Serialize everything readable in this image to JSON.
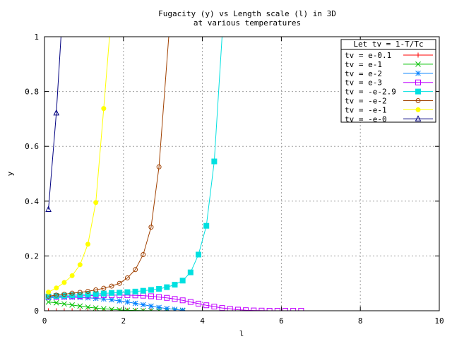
{
  "chart_data": {
    "type": "line",
    "title": "Fugacity (y) vs Length scale (l) in 3D",
    "subtitle": "at various temperatures",
    "xlabel": "l",
    "ylabel": "y",
    "xlim": [
      0,
      10
    ],
    "ylim": [
      0,
      1
    ],
    "x_ticks": [
      0,
      2,
      4,
      6,
      8,
      10
    ],
    "y_ticks": [
      0,
      0.2,
      0.4,
      0.6,
      0.8,
      1
    ],
    "x_tick_labels": [
      "0",
      "2",
      "4",
      "6",
      "8",
      "10"
    ],
    "y_tick_labels": [
      "0",
      "0.2",
      "0.4",
      "0.6",
      "0.8",
      "1"
    ],
    "grid": true,
    "legend": {
      "title": "Let tv = 1-T/Tc",
      "placement": "top-right"
    },
    "series": [
      {
        "name": "tv = e-0.1",
        "color": "#ff0000",
        "marker": "plus",
        "x": [
          0.1,
          0.3,
          0.5,
          0.7,
          0.9,
          1.1,
          1.3,
          1.5,
          1.7,
          1.9,
          2.1,
          2.3,
          2.5,
          2.7,
          2.9,
          3.1,
          3.3,
          3.5
        ],
        "y": [
          0,
          0,
          0,
          0,
          0,
          0,
          0,
          0,
          0,
          0,
          0,
          0,
          0,
          0,
          0,
          0,
          0,
          0
        ]
      },
      {
        "name": "tv = e-1",
        "color": "#00c000",
        "marker": "cross",
        "x": [
          0.1,
          0.3,
          0.5,
          0.7,
          0.9,
          1.1,
          1.3,
          1.5,
          1.7,
          1.9,
          2.1,
          2.3,
          2.5,
          2.7,
          2.9,
          3.1,
          3.3,
          3.5
        ],
        "y": [
          0.032,
          0.029,
          0.025,
          0.021,
          0.017,
          0.013,
          0.01,
          0.007,
          0.005,
          0.003,
          0.002,
          0.001,
          0.0005,
          0.0003,
          0.0001,
          0,
          0,
          0
        ]
      },
      {
        "name": "tv = e-2",
        "color": "#0080ff",
        "marker": "star",
        "x": [
          0.1,
          0.3,
          0.5,
          0.7,
          0.9,
          1.1,
          1.3,
          1.5,
          1.7,
          1.9,
          2.1,
          2.3,
          2.5,
          2.7,
          2.9,
          3.1,
          3.3,
          3.5
        ],
        "y": [
          0.048,
          0.049,
          0.049,
          0.049,
          0.048,
          0.047,
          0.045,
          0.043,
          0.04,
          0.036,
          0.032,
          0.027,
          0.022,
          0.017,
          0.012,
          0.008,
          0.005,
          0.002
        ]
      },
      {
        "name": "tv = e-3",
        "color": "#c000ff",
        "marker": "box",
        "x": [
          0.1,
          0.3,
          0.5,
          0.7,
          0.9,
          1.1,
          1.3,
          1.5,
          1.7,
          1.9,
          2.1,
          2.3,
          2.5,
          2.7,
          2.9,
          3.1,
          3.3,
          3.5,
          3.7,
          3.9,
          4.1,
          4.3,
          4.5,
          4.7,
          4.9,
          5.1,
          5.3,
          5.5,
          5.7,
          5.9,
          6.1,
          6.3,
          6.5
        ],
        "y": [
          0.05,
          0.051,
          0.052,
          0.053,
          0.054,
          0.055,
          0.056,
          0.057,
          0.057,
          0.057,
          0.057,
          0.056,
          0.055,
          0.053,
          0.05,
          0.047,
          0.043,
          0.038,
          0.032,
          0.026,
          0.02,
          0.015,
          0.01,
          0.007,
          0.004,
          0.002,
          0.001,
          0.0005,
          0,
          0,
          0,
          0,
          0
        ]
      },
      {
        "name": "tv = -e-2.9",
        "color": "#00e0e0",
        "marker": "filled-box",
        "x": [
          0.1,
          0.3,
          0.5,
          0.7,
          0.9,
          1.1,
          1.3,
          1.5,
          1.7,
          1.9,
          2.1,
          2.3,
          2.5,
          2.7,
          2.9,
          3.1,
          3.3,
          3.5,
          3.7,
          3.9,
          4.1,
          4.3
        ],
        "y": [
          0.052,
          0.054,
          0.055,
          0.057,
          0.058,
          0.06,
          0.061,
          0.063,
          0.065,
          0.066,
          0.068,
          0.07,
          0.073,
          0.076,
          0.08,
          0.086,
          0.095,
          0.11,
          0.14,
          0.205,
          0.31,
          0.545
        ]
      },
      {
        "name": "tv = -e-2",
        "color": "#a04000",
        "marker": "circle",
        "x": [
          0.1,
          0.3,
          0.5,
          0.7,
          0.9,
          1.1,
          1.3,
          1.5,
          1.7,
          1.9,
          2.1,
          2.3,
          2.5,
          2.7,
          2.9
        ],
        "y": [
          0.053,
          0.057,
          0.06,
          0.064,
          0.067,
          0.071,
          0.076,
          0.082,
          0.09,
          0.1,
          0.12,
          0.15,
          0.205,
          0.305,
          0.525
        ]
      },
      {
        "name": "tv = -e-1",
        "color": "#ffff00",
        "marker": "filled-circle",
        "x": [
          0.1,
          0.3,
          0.5,
          0.7,
          0.9,
          1.1,
          1.3,
          1.5
        ],
        "y": [
          0.068,
          0.083,
          0.103,
          0.128,
          0.168,
          0.243,
          0.395,
          0.738
        ]
      },
      {
        "name": "tv = -e-0",
        "color": "#000080",
        "marker": "triangle",
        "x": [
          0.1,
          0.3
        ],
        "y": [
          0.37,
          0.722
        ]
      }
    ]
  }
}
